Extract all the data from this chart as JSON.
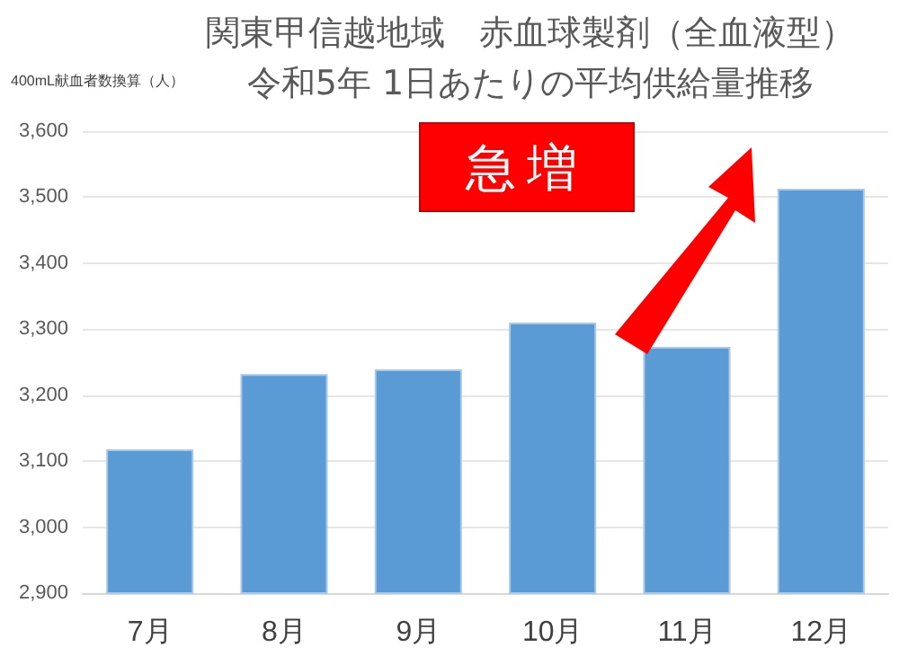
{
  "chart_data": {
    "type": "bar",
    "title": "関東甲信越地域　赤血球製剤（全血液型）",
    "subtitle": "令和5年 1日あたりの平均供給量推移",
    "ylabel": "400mL献血者数換算（人）",
    "categories": [
      "7月",
      "8月",
      "9月",
      "10月",
      "11月",
      "12月"
    ],
    "values": [
      3118,
      3232,
      3239,
      3310,
      3273,
      3513
    ],
    "color": "#5b9bd5",
    "ylim": [
      2900,
      3600
    ],
    "yticks": [
      {
        "value": 2900,
        "label": "2,900"
      },
      {
        "value": 3000,
        "label": "3,000"
      },
      {
        "value": 3100,
        "label": "3,100"
      },
      {
        "value": 3200,
        "label": "3,200"
      },
      {
        "value": 3300,
        "label": "3,300"
      },
      {
        "value": 3400,
        "label": "3,400"
      },
      {
        "value": 3500,
        "label": "3,500"
      },
      {
        "value": 3600,
        "label": "3,600"
      }
    ],
    "grid": "y",
    "annotations": [
      "急増"
    ]
  }
}
